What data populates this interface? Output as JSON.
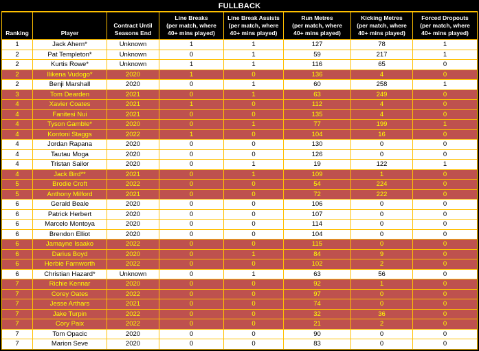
{
  "title": "FULLBACK",
  "colors": {
    "grid": "#FFC000",
    "highlight_bg": "#BE514E",
    "highlight_text": "#FFFF00",
    "header_bg": "#000000",
    "header_text": "#FFFFFF",
    "row_bg": "#FFFFFF",
    "row_text": "#000000"
  },
  "chart_data": {
    "type": "table",
    "title": "FULLBACK",
    "legend_position": "none",
    "column_keys": [
      "ranking",
      "player",
      "contract-until-seasons-end",
      "line-breaks",
      "line-break-assists",
      "run-metres",
      "kicking-metres",
      "forced-dropouts"
    ],
    "columns": [
      {
        "lines": [
          "Ranking"
        ]
      },
      {
        "lines": [
          "Player"
        ]
      },
      {
        "lines": [
          "Contract Until",
          "Seasons End"
        ]
      },
      {
        "lines": [
          "Line Breaks",
          "(per match, where",
          "40+ mins played)"
        ]
      },
      {
        "lines": [
          "Line Break Assists",
          "(per match, where",
          "40+ mins played)"
        ]
      },
      {
        "lines": [
          "Run Metres",
          "(per match, where",
          "40+ mins played)"
        ]
      },
      {
        "lines": [
          "Kicking Metres",
          "(per match, where",
          "40+ mins played)"
        ]
      },
      {
        "lines": [
          "Forced Dropouts",
          "(per match, where",
          "40+ mins played)"
        ]
      }
    ],
    "rows": [
      {
        "values": [
          "1",
          "Jack Ahern*",
          "Unknown",
          "1",
          "1",
          "127",
          "78",
          "1"
        ],
        "highlight": false
      },
      {
        "values": [
          "2",
          "Pat Templeton*",
          "Unknown",
          "0",
          "1",
          "59",
          "217",
          "1"
        ],
        "highlight": false
      },
      {
        "values": [
          "2",
          "Kurtis Rowe*",
          "Unknown",
          "1",
          "1",
          "116",
          "65",
          "0"
        ],
        "highlight": false
      },
      {
        "values": [
          "2",
          "Ilikena Vudogo*",
          "2020",
          "1",
          "0",
          "136",
          "4",
          "0"
        ],
        "highlight": true
      },
      {
        "values": [
          "2",
          "Benji Marshall",
          "2020",
          "0",
          "1",
          "60",
          "258",
          "1"
        ],
        "highlight": false
      },
      {
        "values": [
          "3",
          "Tom Dearden",
          "2021",
          "0",
          "1",
          "63",
          "249",
          "0"
        ],
        "highlight": true
      },
      {
        "values": [
          "4",
          "Xavier Coates",
          "2021",
          "1",
          "0",
          "112",
          "4",
          "0"
        ],
        "highlight": true
      },
      {
        "values": [
          "4",
          "Fanitesi Nui",
          "2021",
          "0",
          "0",
          "135",
          "4",
          "0"
        ],
        "highlight": true
      },
      {
        "values": [
          "4",
          "Tyson Gamble*",
          "2020",
          "0",
          "1",
          "77",
          "199",
          "1"
        ],
        "highlight": true
      },
      {
        "values": [
          "4",
          "Kontoni Staggs",
          "2022",
          "1",
          "0",
          "104",
          "16",
          "0"
        ],
        "highlight": true
      },
      {
        "values": [
          "4",
          "Jordan Rapana",
          "2020",
          "0",
          "0",
          "130",
          "0",
          "0"
        ],
        "highlight": false
      },
      {
        "values": [
          "4",
          "Tautau Moga",
          "2020",
          "0",
          "0",
          "126",
          "0",
          "0"
        ],
        "highlight": false
      },
      {
        "values": [
          "4",
          "Tristan Sailor",
          "2020",
          "0",
          "1",
          "19",
          "122",
          "1"
        ],
        "highlight": false
      },
      {
        "values": [
          "4",
          "Jack Bird**",
          "2021",
          "0",
          "1",
          "109",
          "1",
          "0"
        ],
        "highlight": true
      },
      {
        "values": [
          "5",
          "Brodie Croft",
          "2022",
          "0",
          "0",
          "54",
          "224",
          "0"
        ],
        "highlight": true
      },
      {
        "values": [
          "5",
          "Anthony Milford",
          "2021",
          "0",
          "0",
          "72",
          "222",
          "0"
        ],
        "highlight": true
      },
      {
        "values": [
          "6",
          "Gerald Beale",
          "2020",
          "0",
          "0",
          "106",
          "0",
          "0"
        ],
        "highlight": false
      },
      {
        "values": [
          "6",
          "Patrick Herbert",
          "2020",
          "0",
          "0",
          "107",
          "0",
          "0"
        ],
        "highlight": false
      },
      {
        "values": [
          "6",
          "Marcelo Montoya",
          "2020",
          "0",
          "0",
          "114",
          "0",
          "0"
        ],
        "highlight": false
      },
      {
        "values": [
          "6",
          "Brendon Elliot",
          "2020",
          "0",
          "0",
          "104",
          "0",
          "0"
        ],
        "highlight": false
      },
      {
        "values": [
          "6",
          "Jamayne Isaako",
          "2022",
          "0",
          "0",
          "115",
          "0",
          "0"
        ],
        "highlight": true
      },
      {
        "values": [
          "6",
          "Darius Boyd",
          "2020",
          "0",
          "1",
          "84",
          "9",
          "0"
        ],
        "highlight": true
      },
      {
        "values": [
          "6",
          "Herbie Farnworth",
          "2022",
          "0",
          "0",
          "102",
          "2",
          "0"
        ],
        "highlight": true
      },
      {
        "values": [
          "6",
          "Christian Hazard*",
          "Unknown",
          "0",
          "1",
          "63",
          "56",
          "0"
        ],
        "highlight": false
      },
      {
        "values": [
          "7",
          "Richie Kennar",
          "2020",
          "0",
          "0",
          "92",
          "1",
          "0"
        ],
        "highlight": true
      },
      {
        "values": [
          "7",
          "Corey Oates",
          "2022",
          "0",
          "0",
          "97",
          "0",
          "0"
        ],
        "highlight": true
      },
      {
        "values": [
          "7",
          "Jesse Arthars",
          "2021",
          "0",
          "0",
          "74",
          "0",
          "0"
        ],
        "highlight": true
      },
      {
        "values": [
          "7",
          "Jake Turpin",
          "2022",
          "0",
          "0",
          "32",
          "36",
          "0"
        ],
        "highlight": true
      },
      {
        "values": [
          "7",
          "Cory Paix",
          "2022",
          "0",
          "0",
          "21",
          "2",
          "0"
        ],
        "highlight": true
      },
      {
        "values": [
          "7",
          "Tom Opacic",
          "2020",
          "0",
          "0",
          "90",
          "0",
          "0"
        ],
        "highlight": false
      },
      {
        "values": [
          "7",
          "Marion Seve",
          "2020",
          "0",
          "0",
          "83",
          "0",
          "0"
        ],
        "highlight": false
      }
    ]
  }
}
